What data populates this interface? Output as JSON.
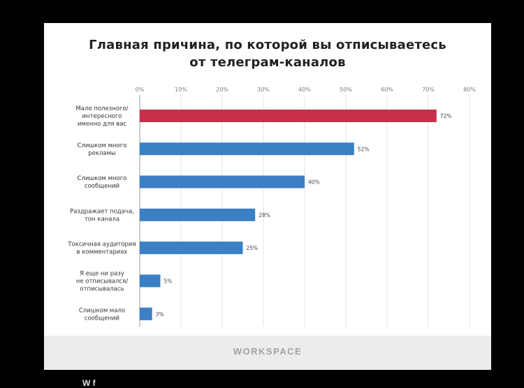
{
  "title_lines": [
    "Главная причина, по которой вы отписываетесь",
    "от телеграм-каналов"
  ],
  "brand": "WORKSPACE",
  "bottom_caption": "W f",
  "chart_data": {
    "type": "bar",
    "orientation": "horizontal",
    "title": "Главная причина, по которой вы отписываетесь от телеграм-каналов",
    "xlim": [
      0,
      80
    ],
    "ticks": [
      "0%",
      "10%",
      "20%",
      "30%",
      "40%",
      "50%",
      "60%",
      "70%",
      "80%"
    ],
    "tick_values": [
      0,
      10,
      20,
      30,
      40,
      50,
      60,
      70,
      80
    ],
    "grid": true,
    "categories": [
      [
        "Мало полезного/",
        "интересного",
        "именно для вас"
      ],
      [
        "Слишком много",
        "рекламы"
      ],
      [
        "Слишком много",
        "сообщений"
      ],
      [
        "Раздражает подача,",
        "тон канала"
      ],
      [
        "Токсичная аудитория",
        "в комментариях"
      ],
      [
        "Я еще ни разу",
        "не отписывался/",
        "отписывалась"
      ],
      [
        "Слишком мало",
        "сообщений"
      ]
    ],
    "values": [
      72,
      52,
      40,
      28,
      25,
      5,
      3
    ],
    "value_labels": [
      "72%",
      "52%",
      "40%",
      "28%",
      "25%",
      "5%",
      "3%"
    ],
    "colors": [
      "#c8304a",
      "#3b7fc4",
      "#3b7fc4",
      "#3b7fc4",
      "#3b7fc4",
      "#3b7fc4",
      "#3b7fc4"
    ]
  }
}
